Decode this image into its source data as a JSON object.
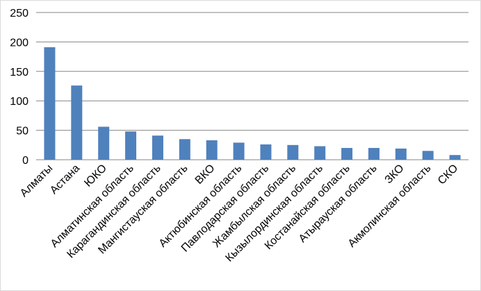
{
  "chart_data": {
    "type": "bar",
    "title": "",
    "xlabel": "",
    "ylabel": "",
    "ylim": [
      0,
      250
    ],
    "yticks": [
      0,
      50,
      100,
      150,
      200,
      250
    ],
    "grid": true,
    "legend": "none",
    "bar_color": "#4f81bd",
    "categories": [
      "Алматы",
      "Астана",
      "ЮКО",
      "Алматинская область",
      "Карагандинская область",
      "Мангистауская область",
      "ВКО",
      "Актюбинская область",
      "Павлодарская область",
      "Жамбылская область",
      "Кызылординская область",
      "Костанайская область",
      "Атырауская область",
      "ЗКО",
      "Акмолинская область",
      "СКО"
    ],
    "values": [
      191,
      126,
      56,
      48,
      41,
      35,
      33,
      29,
      26,
      25,
      23,
      20,
      20,
      19,
      15,
      8
    ]
  }
}
